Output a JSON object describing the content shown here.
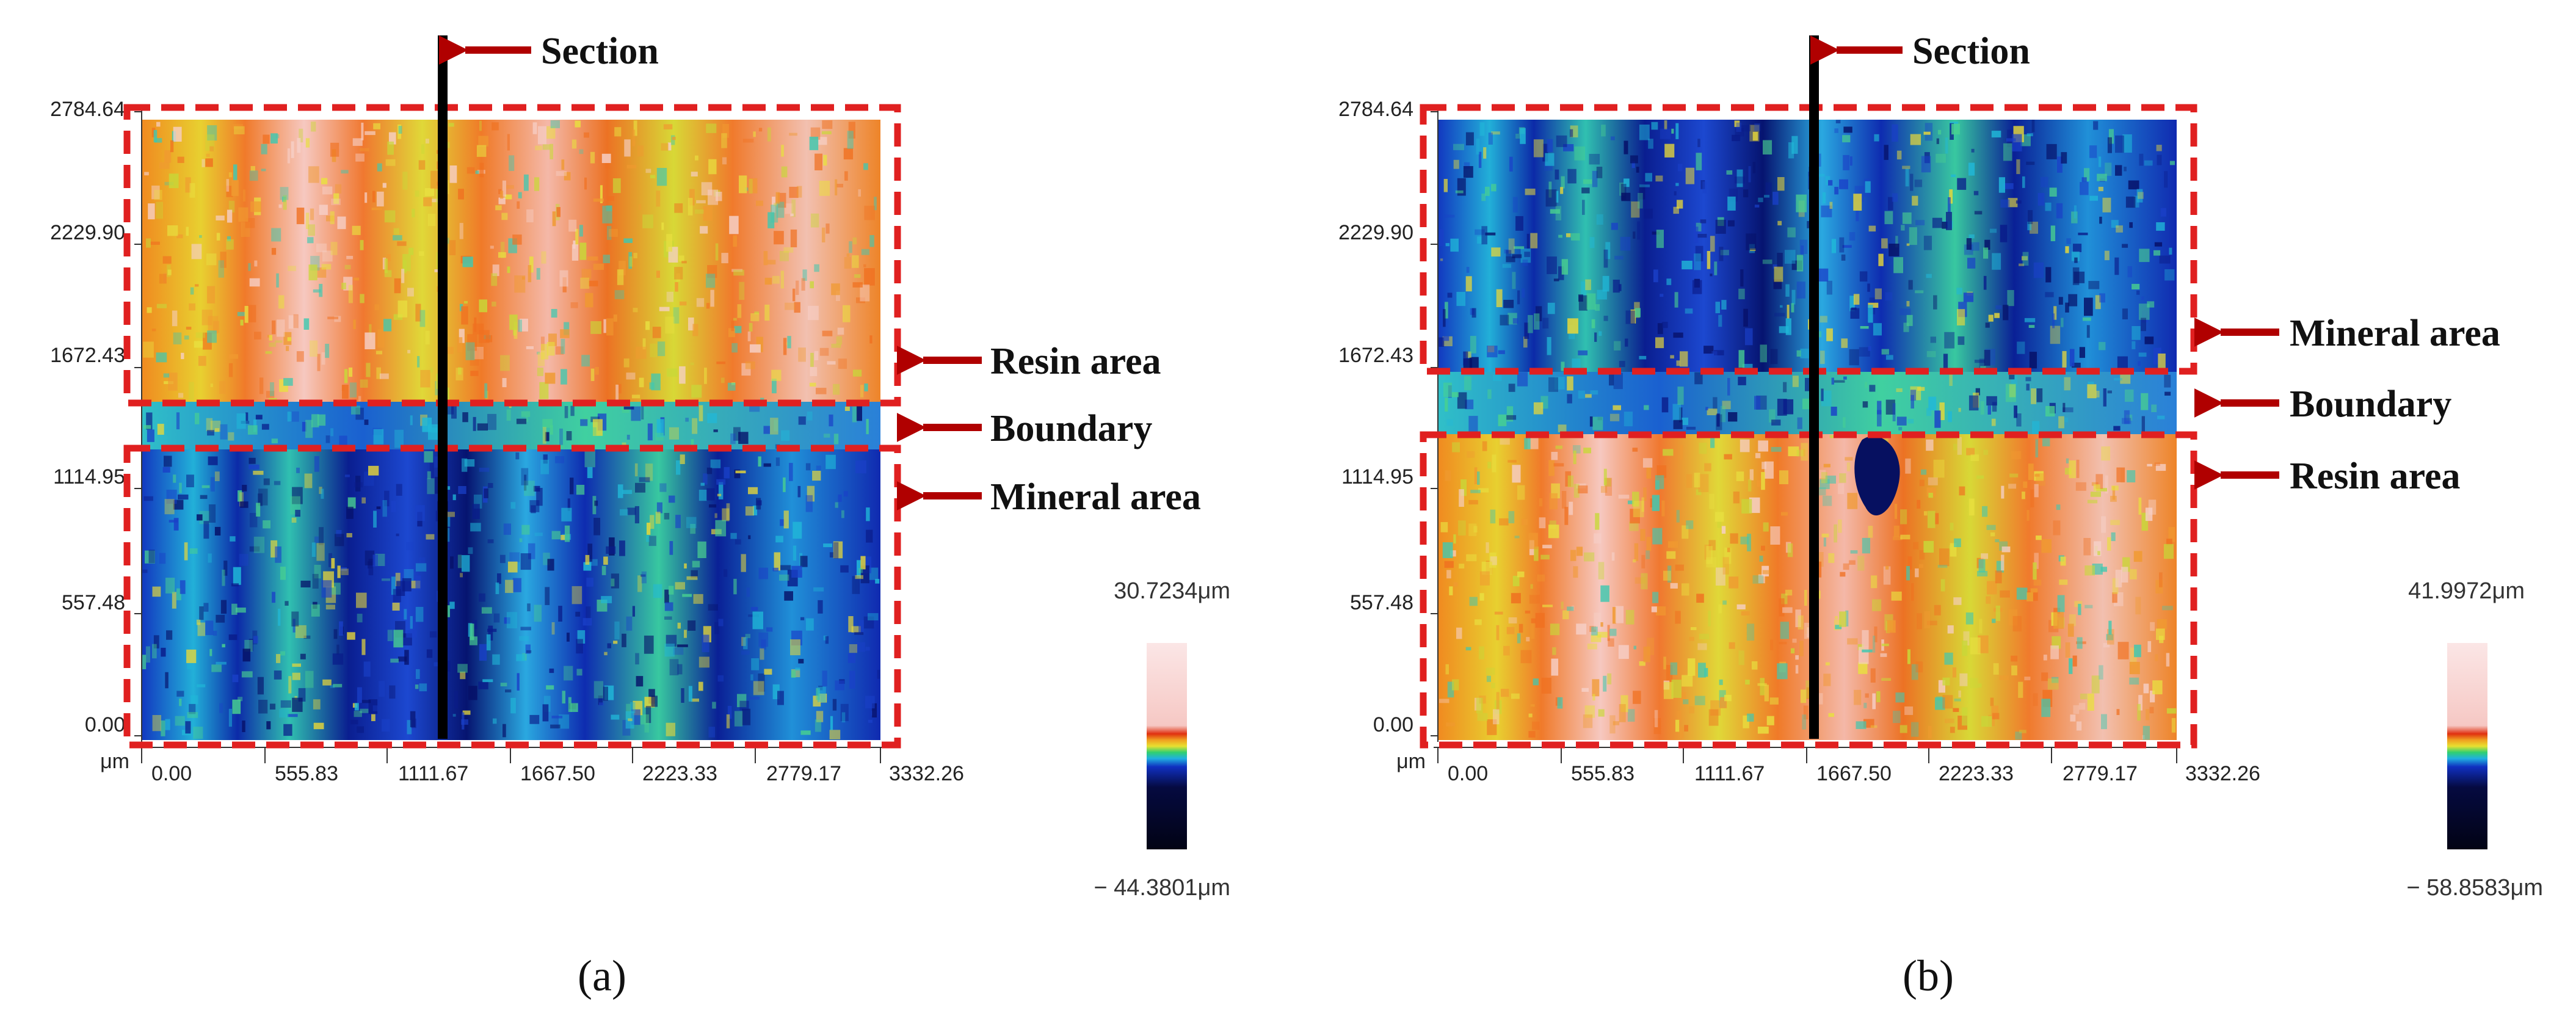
{
  "panels": [
    {
      "id": "a",
      "caption": "(a)",
      "x_unit": "μm",
      "x_ticks": [
        "0.00",
        "555.83",
        "1111.67",
        "1667.50",
        "2223.33",
        "2779.17",
        "3332.26"
      ],
      "y_ticks": [
        "2784.64",
        "2229.90",
        "1672.43",
        "1114.95",
        "557.48",
        "0.00"
      ],
      "section_label": "Section",
      "region_labels": {
        "top": "Resin area",
        "boundary": "Boundary",
        "bottom": "Mineral area"
      },
      "colorbar_max": "30.7234μm",
      "colorbar_min": "− 44.3801μm",
      "top_region": "resin",
      "bottom_region": "mineral"
    },
    {
      "id": "b",
      "caption": "(b)",
      "x_unit": "μm",
      "x_ticks": [
        "0.00",
        "555.83",
        "1111.67",
        "1667.50",
        "2223.33",
        "2779.17",
        "3332.26"
      ],
      "y_ticks": [
        "2784.64",
        "2229.90",
        "1672.43",
        "1114.95",
        "557.48",
        "0.00"
      ],
      "section_label": "Section",
      "region_labels": {
        "top": "Mineral area",
        "boundary": "Boundary",
        "bottom": "Resin area"
      },
      "colorbar_max": "41.9972μm",
      "colorbar_min": "− 58.8583μm",
      "top_region": "mineral",
      "bottom_region": "resin"
    }
  ],
  "colors": {
    "box": "#e02020",
    "arrow": "#b00000",
    "section_line": "#000000",
    "resin_base": "#e8781e",
    "mineral_base": "#1434c8"
  }
}
